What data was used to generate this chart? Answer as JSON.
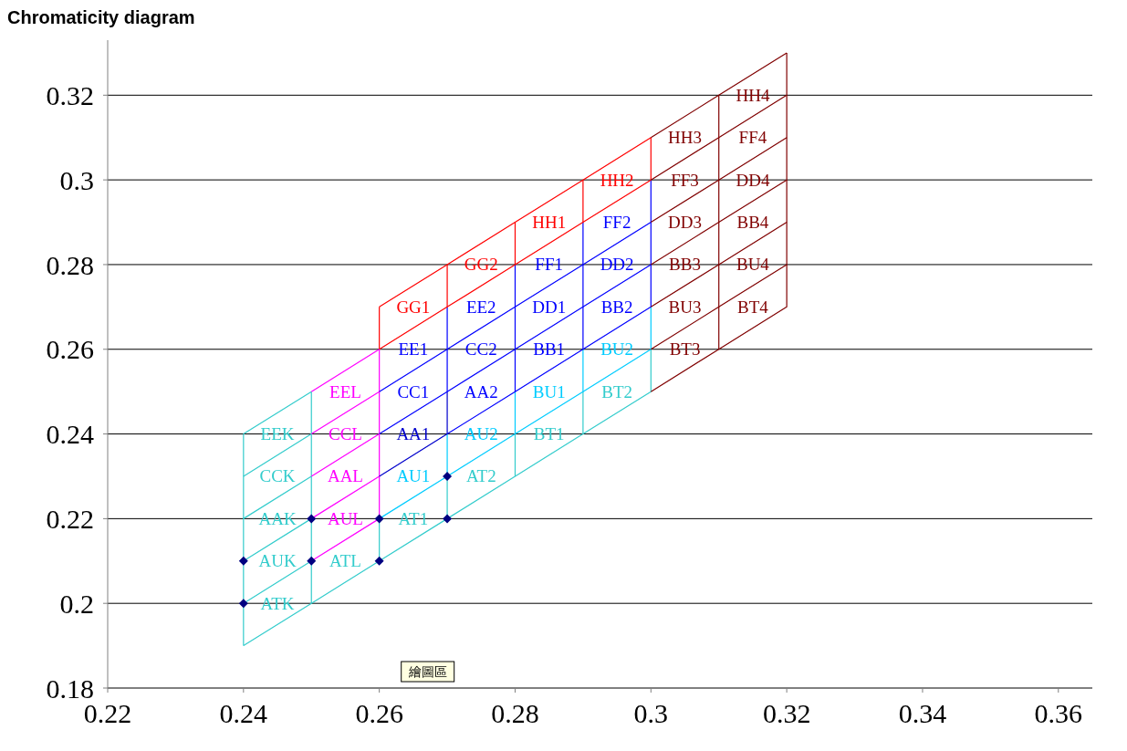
{
  "chart_data": {
    "type": "line",
    "title": "Chromaticity diagram",
    "xlim": [
      0.22,
      0.365
    ],
    "xticks": [
      0.22,
      0.24,
      0.26,
      0.28,
      0.3,
      0.32,
      0.34,
      0.36
    ],
    "ylim": [
      0.18,
      0.333
    ],
    "yticks": [
      0.18,
      0.2,
      0.22,
      0.24,
      0.26,
      0.28,
      0.3,
      0.32
    ],
    "grid": "y",
    "marker": "none",
    "line_style": "solid",
    "annotations": [
      "繪圖區"
    ],
    "series": [
      {
        "name": "ATK",
        "color": "#33cccc",
        "x": [
          0.24,
          0.25,
          0.25
        ],
        "values": [
          0.19,
          0.2,
          0.21
        ]
      },
      {
        "name": "AUK",
        "color": "#33cccc",
        "x": [
          0.24,
          0.25,
          0.25
        ],
        "values": [
          0.2,
          0.21,
          0.22
        ]
      },
      {
        "name": "AAK",
        "color": "#33cccc",
        "x": [
          0.24,
          0.25,
          0.25
        ],
        "values": [
          0.21,
          0.22,
          0.23
        ]
      },
      {
        "name": "CCK",
        "color": "#33cccc",
        "x": [
          0.24,
          0.25,
          0.25
        ],
        "values": [
          0.22,
          0.23,
          0.24
        ]
      },
      {
        "name": "EEK",
        "color": "#33cccc",
        "x": [
          0.24,
          0.25,
          0.25
        ],
        "values": [
          0.23,
          0.24,
          0.25
        ]
      },
      {
        "name": "ATL",
        "color": "#33cccc",
        "x": [
          0.25,
          0.26,
          0.26
        ],
        "values": [
          0.2,
          0.21,
          0.22
        ]
      },
      {
        "name": "AUL",
        "color": "#ff00ff",
        "x": [
          0.25,
          0.26,
          0.26
        ],
        "values": [
          0.21,
          0.22,
          0.23
        ]
      },
      {
        "name": "AAL",
        "color": "#ff00ff",
        "x": [
          0.25,
          0.26,
          0.26
        ],
        "values": [
          0.22,
          0.23,
          0.24
        ]
      },
      {
        "name": "CCL",
        "color": "#ff00ff",
        "x": [
          0.25,
          0.26,
          0.26
        ],
        "values": [
          0.23,
          0.24,
          0.25
        ]
      },
      {
        "name": "EEL",
        "color": "#ff00ff",
        "x": [
          0.25,
          0.26,
          0.26
        ],
        "values": [
          0.24,
          0.25,
          0.26
        ]
      },
      {
        "name": "AT1",
        "color": "#33cccc",
        "x": [
          0.26,
          0.27,
          0.27
        ],
        "values": [
          0.21,
          0.22,
          0.23
        ]
      },
      {
        "name": "AU1",
        "color": "#00ccff",
        "x": [
          0.26,
          0.27,
          0.27
        ],
        "values": [
          0.22,
          0.23,
          0.24
        ]
      },
      {
        "name": "AA1",
        "color": "#0000cc",
        "x": [
          0.26,
          0.27,
          0.27
        ],
        "values": [
          0.23,
          0.24,
          0.25
        ]
      },
      {
        "name": "CC1",
        "color": "#0000ff",
        "x": [
          0.26,
          0.27,
          0.27
        ],
        "values": [
          0.24,
          0.25,
          0.26
        ]
      },
      {
        "name": "EE1",
        "color": "#0000ff",
        "x": [
          0.26,
          0.27,
          0.27
        ],
        "values": [
          0.25,
          0.26,
          0.27
        ]
      },
      {
        "name": "GG1",
        "color": "#ff0000",
        "x": [
          0.26,
          0.27,
          0.27
        ],
        "values": [
          0.26,
          0.27,
          0.28
        ]
      },
      {
        "name": "AT2",
        "color": "#33cccc",
        "x": [
          0.27,
          0.28,
          0.28
        ],
        "values": [
          0.22,
          0.23,
          0.24
        ]
      },
      {
        "name": "AU2",
        "color": "#00ccff",
        "x": [
          0.27,
          0.28,
          0.28
        ],
        "values": [
          0.23,
          0.24,
          0.25
        ]
      },
      {
        "name": "AA2",
        "color": "#0000ff",
        "x": [
          0.27,
          0.28,
          0.28
        ],
        "values": [
          0.24,
          0.25,
          0.26
        ]
      },
      {
        "name": "CC2",
        "color": "#0000ff",
        "x": [
          0.27,
          0.28,
          0.28
        ],
        "values": [
          0.25,
          0.26,
          0.27
        ]
      },
      {
        "name": "EE2",
        "color": "#0000ff",
        "x": [
          0.27,
          0.28,
          0.28
        ],
        "values": [
          0.26,
          0.27,
          0.28
        ]
      },
      {
        "name": "GG2",
        "color": "#ff0000",
        "x": [
          0.27,
          0.28,
          0.28
        ],
        "values": [
          0.27,
          0.28,
          0.29
        ]
      },
      {
        "name": "BT1",
        "color": "#33cccc",
        "x": [
          0.28,
          0.29,
          0.29
        ],
        "values": [
          0.23,
          0.24,
          0.25
        ]
      },
      {
        "name": "BU1",
        "color": "#00ccff",
        "x": [
          0.28,
          0.29,
          0.29
        ],
        "values": [
          0.24,
          0.25,
          0.26
        ]
      },
      {
        "name": "BB1",
        "color": "#0000ff",
        "x": [
          0.28,
          0.29,
          0.29
        ],
        "values": [
          0.25,
          0.26,
          0.27
        ]
      },
      {
        "name": "DD1",
        "color": "#0000ff",
        "x": [
          0.28,
          0.29,
          0.29
        ],
        "values": [
          0.26,
          0.27,
          0.28
        ]
      },
      {
        "name": "FF1",
        "color": "#0000ff",
        "x": [
          0.28,
          0.29,
          0.29
        ],
        "values": [
          0.27,
          0.28,
          0.29
        ]
      },
      {
        "name": "HH1",
        "color": "#ff0000",
        "x": [
          0.28,
          0.29,
          0.29
        ],
        "values": [
          0.28,
          0.29,
          0.3
        ]
      },
      {
        "name": "BT2",
        "color": "#33cccc",
        "x": [
          0.29,
          0.3,
          0.3
        ],
        "values": [
          0.24,
          0.25,
          0.26
        ]
      },
      {
        "name": "BU2",
        "color": "#00ccff",
        "x": [
          0.29,
          0.3,
          0.3
        ],
        "values": [
          0.25,
          0.26,
          0.27
        ]
      },
      {
        "name": "BB2",
        "color": "#0000ff",
        "x": [
          0.29,
          0.3,
          0.3
        ],
        "values": [
          0.26,
          0.27,
          0.28
        ]
      },
      {
        "name": "DD2",
        "color": "#0000ff",
        "x": [
          0.29,
          0.3,
          0.3
        ],
        "values": [
          0.27,
          0.28,
          0.29
        ]
      },
      {
        "name": "FF2",
        "color": "#0000ff",
        "x": [
          0.29,
          0.3,
          0.3
        ],
        "values": [
          0.28,
          0.29,
          0.3
        ]
      },
      {
        "name": "HH2",
        "color": "#ff0000",
        "x": [
          0.29,
          0.3,
          0.3
        ],
        "values": [
          0.29,
          0.3,
          0.31
        ]
      },
      {
        "name": "BT3",
        "color": "#800000",
        "x": [
          0.3,
          0.31,
          0.31
        ],
        "values": [
          0.25,
          0.26,
          0.27
        ]
      },
      {
        "name": "BU3",
        "color": "#800000",
        "x": [
          0.3,
          0.31,
          0.31
        ],
        "values": [
          0.26,
          0.27,
          0.28
        ]
      },
      {
        "name": "BB3",
        "color": "#800000",
        "x": [
          0.3,
          0.31,
          0.31
        ],
        "values": [
          0.27,
          0.28,
          0.29
        ]
      },
      {
        "name": "DD3",
        "color": "#800000",
        "x": [
          0.3,
          0.31,
          0.31
        ],
        "values": [
          0.28,
          0.29,
          0.3
        ]
      },
      {
        "name": "FF3",
        "color": "#800000",
        "x": [
          0.3,
          0.31,
          0.31
        ],
        "values": [
          0.29,
          0.3,
          0.31
        ]
      },
      {
        "name": "HH3",
        "color": "#800000",
        "x": [
          0.3,
          0.31,
          0.31
        ],
        "values": [
          0.3,
          0.31,
          0.32
        ]
      },
      {
        "name": "BT4",
        "color": "#800000",
        "x": [
          0.31,
          0.32,
          0.32
        ],
        "values": [
          0.26,
          0.27,
          0.28
        ]
      },
      {
        "name": "BU4",
        "color": "#800000",
        "x": [
          0.31,
          0.32,
          0.32
        ],
        "values": [
          0.27,
          0.28,
          0.29
        ]
      },
      {
        "name": "BB4",
        "color": "#800000",
        "x": [
          0.31,
          0.32,
          0.32
        ],
        "values": [
          0.28,
          0.29,
          0.3
        ]
      },
      {
        "name": "DD4",
        "color": "#800000",
        "x": [
          0.31,
          0.32,
          0.32
        ],
        "values": [
          0.29,
          0.3,
          0.31
        ]
      },
      {
        "name": "FF4",
        "color": "#800000",
        "x": [
          0.31,
          0.32,
          0.32
        ],
        "values": [
          0.3,
          0.31,
          0.32
        ]
      },
      {
        "name": "HH4",
        "color": "#800000",
        "x": [
          0.31,
          0.32,
          0.32
        ],
        "values": [
          0.31,
          0.32,
          0.33
        ]
      },
      {
        "color": "#33cccc",
        "x": [
          0.24,
          0.24
        ],
        "values": [
          0.19,
          0.24
        ]
      },
      {
        "color": "#ff0000",
        "x": [
          0.26,
          0.26
        ],
        "values": [
          0.26,
          0.27
        ]
      },
      {
        "color": "#33cccc",
        "x": [
          0.24,
          0.25
        ],
        "values": [
          0.24,
          0.25
        ]
      },
      {
        "color": "#ff00ff",
        "x": [
          0.25,
          0.26
        ],
        "values": [
          0.25,
          0.26
        ]
      },
      {
        "color": "#ff0000",
        "x": [
          0.26,
          0.27,
          0.28,
          0.29,
          0.3
        ],
        "values": [
          0.27,
          0.28,
          0.29,
          0.3,
          0.31
        ]
      },
      {
        "color": "#800000",
        "x": [
          0.3,
          0.31,
          0.32
        ],
        "values": [
          0.31,
          0.32,
          0.33
        ]
      },
      {
        "type": "scatter",
        "marker": "diamond",
        "color": "#000080",
        "x": [
          0.24,
          0.24,
          0.25,
          0.25,
          0.26,
          0.26,
          0.27,
          0.27
        ],
        "values": [
          0.2,
          0.21,
          0.21,
          0.22,
          0.21,
          0.22,
          0.22,
          0.23
        ]
      }
    ]
  }
}
